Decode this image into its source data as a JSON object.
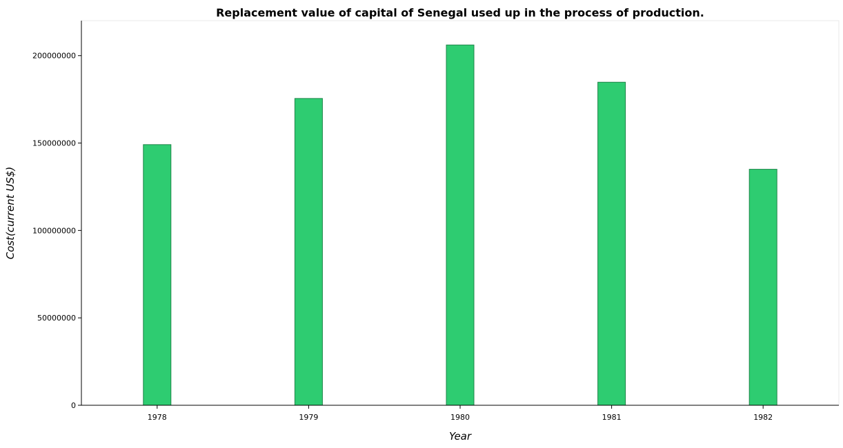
{
  "chart_data": {
    "type": "bar",
    "title": "Replacement value of capital of Senegal used up in the process of production.",
    "xlabel": "Year",
    "ylabel": "Cost(current US$)",
    "categories": [
      "1978",
      "1979",
      "1980",
      "1981",
      "1982"
    ],
    "values": [
      149100000,
      175500000,
      206100000,
      184800000,
      135000000
    ],
    "ylim": [
      0,
      220000000
    ],
    "yticks": [
      0,
      50000000,
      100000000,
      150000000,
      200000000
    ],
    "ytick_labels": [
      "0",
      "50000000",
      "100000000",
      "150000000",
      "200000000"
    ],
    "grid": false,
    "legend": "none",
    "colors": {
      "bar_fill": "#2ecc71",
      "bar_stroke": "#1e8449",
      "axis": "#000000",
      "frame": "#e8e8e8"
    }
  }
}
